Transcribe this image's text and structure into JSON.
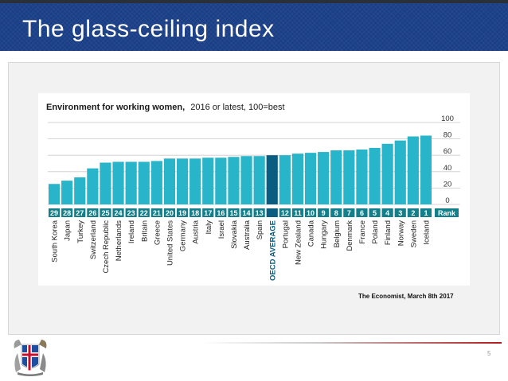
{
  "slide": {
    "title": "The glass-ceiling index",
    "source": "The Economist, March 8th 2017",
    "page_number": "5"
  },
  "colors": {
    "header_bg": "#1a3f86",
    "bar": "#29b5c9",
    "bar_highlight": "#0a5d80",
    "rank_box": "#127f8a",
    "footer_accent": "#b31b1b"
  },
  "icons": {
    "crest": "iceland-coat-of-arms-icon"
  },
  "chart_data": {
    "type": "bar",
    "title": "Environment for working women,",
    "subtitle": "2016 or latest, 100=best",
    "ylim": [
      0,
      100
    ],
    "yticks": [
      0,
      20,
      40,
      60,
      80,
      100
    ],
    "grid": true,
    "rank_label": "Rank",
    "categories": [
      "South Korea",
      "Japan",
      "Turkey",
      "Switzerland",
      "Czech Republic",
      "Netherlands",
      "Ireland",
      "Britain",
      "Greece",
      "United States",
      "Germany",
      "Austria",
      "Italy",
      "Israel",
      "Slovakia",
      "Australia",
      "Spain",
      "OECD AVERAGE",
      "Portugal",
      "New Zealand",
      "Canada",
      "Hungary",
      "Belgium",
      "Denmark",
      "France",
      "Poland",
      "Finland",
      "Norway",
      "Sweden",
      "Iceland"
    ],
    "ranks": [
      "29",
      "28",
      "27",
      "26",
      "25",
      "24",
      "23",
      "22",
      "21",
      "20",
      "19",
      "18",
      "17",
      "16",
      "15",
      "14",
      "13",
      "",
      "12",
      "11",
      "10",
      "9",
      "8",
      "7",
      "6",
      "5",
      "4",
      "3",
      "2",
      "1"
    ],
    "values": [
      25,
      29,
      33,
      44,
      51,
      52,
      52,
      52,
      53,
      56,
      56,
      56,
      57,
      57,
      58,
      59,
      59,
      60,
      60,
      62,
      63,
      64,
      66,
      66,
      67,
      69,
      74,
      78,
      83,
      84
    ],
    "highlight": "OECD AVERAGE"
  }
}
